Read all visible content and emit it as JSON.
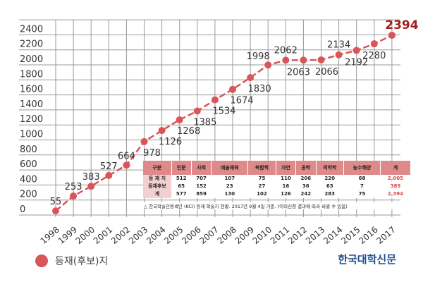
{
  "chart_data": {
    "type": "line",
    "categories": [
      "1998",
      "1999",
      "2000",
      "2001",
      "2002",
      "2003",
      "2004",
      "2005",
      "2006",
      "2007",
      "2008",
      "2009",
      "2010",
      "2011",
      "2012",
      "2013",
      "2014",
      "2015",
      "2016",
      "2017"
    ],
    "series": [
      {
        "name": "등재(후보)지",
        "values": [
          55,
          253,
          383,
          527,
          664,
          978,
          1126,
          1268,
          1385,
          1534,
          1674,
          1830,
          1998,
          2062,
          2063,
          2066,
          2134,
          2192,
          2280,
          2394
        ]
      }
    ],
    "yticks": [
      0,
      200,
      400,
      600,
      800,
      1000,
      1200,
      1400,
      1600,
      1800,
      2000,
      2200,
      2400
    ],
    "ylim": [
      0,
      2600
    ],
    "grid": true,
    "color": "#d9555a",
    "highlight_color": "#a51c1c"
  },
  "table": {
    "headers": [
      "구분",
      "인문",
      "사회",
      "예술체육",
      "복합학",
      "자연",
      "공학",
      "의약학",
      "농수해양",
      "계"
    ],
    "rows": [
      [
        "등 재 지",
        "512",
        "707",
        "107",
        "75",
        "110",
        "206",
        "220",
        "68",
        "2,005"
      ],
      [
        "등재후보",
        "65",
        "152",
        "23",
        "27",
        "16",
        "36",
        "63",
        "7",
        "389"
      ],
      [
        "계",
        "577",
        "859",
        "130",
        "102",
        "126",
        "242",
        "283",
        "75",
        "2,394"
      ]
    ],
    "note": "△ 한국학술인용색인 (KCI) 등재 학술지 현황. 2017년 9월 4일 기준. (이의신청 결과에 따라 바뀔 수 있음)"
  },
  "legend": {
    "label": "등재(후보)지"
  },
  "brand": "한국대학신문"
}
